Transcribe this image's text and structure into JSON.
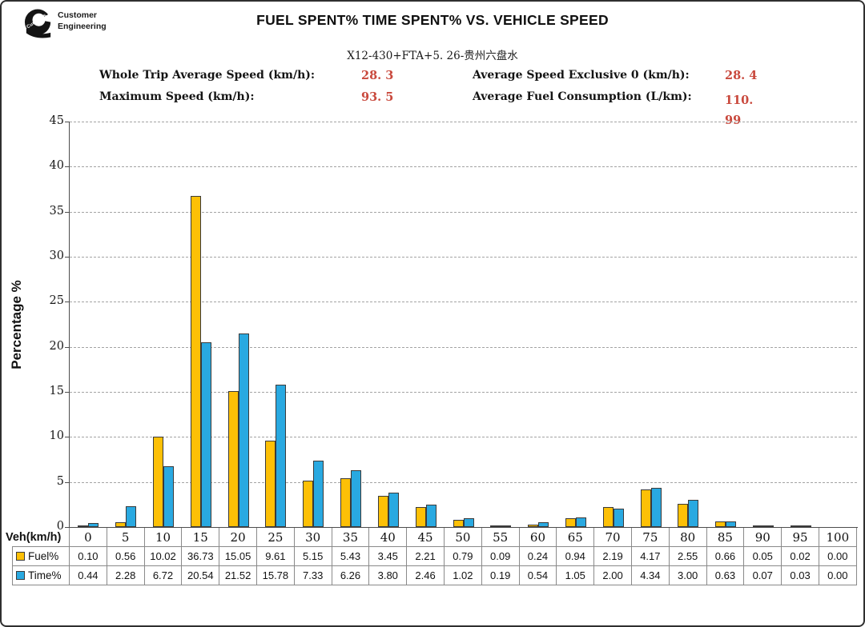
{
  "logo": {
    "wordmark": "Cummins",
    "line1": "Customer",
    "line2": "Engineering"
  },
  "header": {
    "title": "FUEL SPENT% TIME SPENT% VS. VEHICLE SPEED",
    "subtitle": "X12-430+FTA+5. 26-贵州六盘水"
  },
  "stats": {
    "value_color": "#c9493d",
    "items": [
      {
        "label": "Whole Trip Average Speed (km/h):",
        "value": "28. 3"
      },
      {
        "label": "Average Speed Exclusive 0 (km/h):",
        "value": "28. 4"
      },
      {
        "label": "Maximum Speed (km/h):",
        "value": "93. 5"
      },
      {
        "label": "Average Fuel Consumption (L/km):",
        "value": "110. 99"
      }
    ]
  },
  "chart_data": {
    "type": "bar",
    "title": "FUEL SPENT% TIME SPENT% VS. VEHICLE SPEED",
    "xlabel": "Veh(km/h)",
    "ylabel": "Percentage %",
    "ylim": [
      0,
      45
    ],
    "ytick_step": 5,
    "grid": "horizontal-dashed",
    "legend_position": "table-row-headers",
    "axis_color": "#4d4d4d",
    "gridline_color": "#a3a3a3",
    "categories": [
      0,
      5,
      10,
      15,
      20,
      25,
      30,
      35,
      40,
      45,
      50,
      55,
      60,
      65,
      70,
      75,
      80,
      85,
      90,
      95,
      100
    ],
    "series": [
      {
        "name": "Fuel%",
        "color": "#fdc006",
        "values": [
          0.1,
          0.56,
          10.02,
          36.73,
          15.05,
          9.61,
          5.15,
          5.43,
          3.45,
          2.21,
          0.79,
          0.09,
          0.24,
          0.94,
          2.19,
          4.17,
          2.55,
          0.66,
          0.05,
          0.02,
          0.0
        ]
      },
      {
        "name": "Time%",
        "color": "#29a9e1",
        "values": [
          0.44,
          2.28,
          6.72,
          20.54,
          21.52,
          15.78,
          7.33,
          6.26,
          3.8,
          2.46,
          1.02,
          0.19,
          0.54,
          1.05,
          2.0,
          4.34,
          3.0,
          0.63,
          0.07,
          0.03,
          0.0
        ]
      }
    ]
  }
}
